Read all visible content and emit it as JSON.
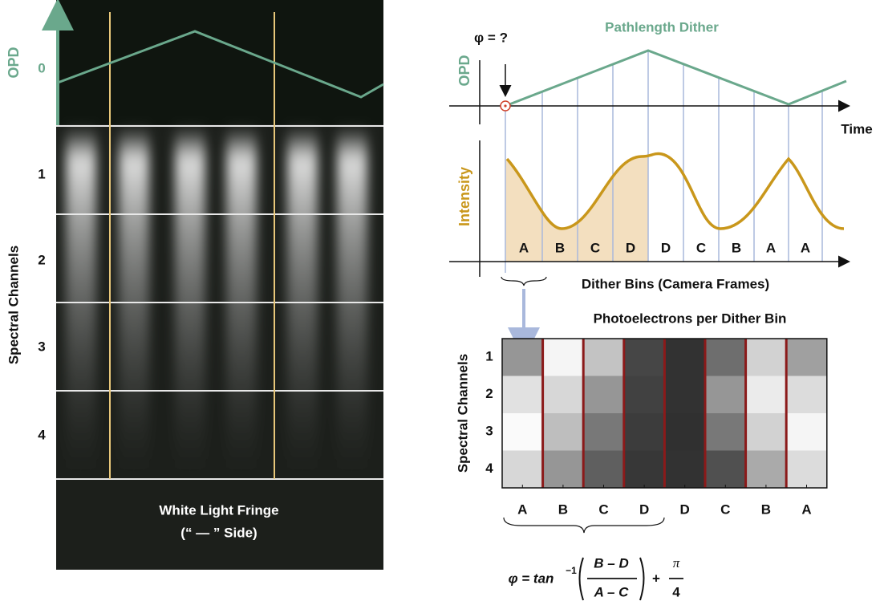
{
  "left": {
    "opd_label": "OPD",
    "zero_label": "0",
    "channels": [
      "1",
      "2",
      "3",
      "4"
    ],
    "y_label": "Spectral Channels",
    "caption": [
      "White Light Fringe",
      "(“ — ” Side)"
    ]
  },
  "dither": {
    "title": "Pathlength Dither",
    "phi_label": "φ = ?",
    "opd_label": "OPD",
    "time_label": "Time",
    "intensity_label": "Intensity",
    "bins": [
      "A",
      "B",
      "C",
      "D",
      "D",
      "C",
      "B",
      "A",
      "A"
    ],
    "x_label": "Dither Bins (Camera Frames)"
  },
  "heatmap": {
    "title": "Photoelectrons per Dither Bin",
    "y_label": "Spectral Channels",
    "channels": [
      "1",
      "2",
      "3",
      "4"
    ],
    "bins": [
      "A",
      "B",
      "C",
      "D",
      "D",
      "C",
      "B",
      "A"
    ]
  },
  "formula": {
    "lhs": "φ = tan",
    "exponent": "−1",
    "numerator": "B – D",
    "denominator": "A – C",
    "plus": "+",
    "pi": "π",
    "four": "4"
  }
}
